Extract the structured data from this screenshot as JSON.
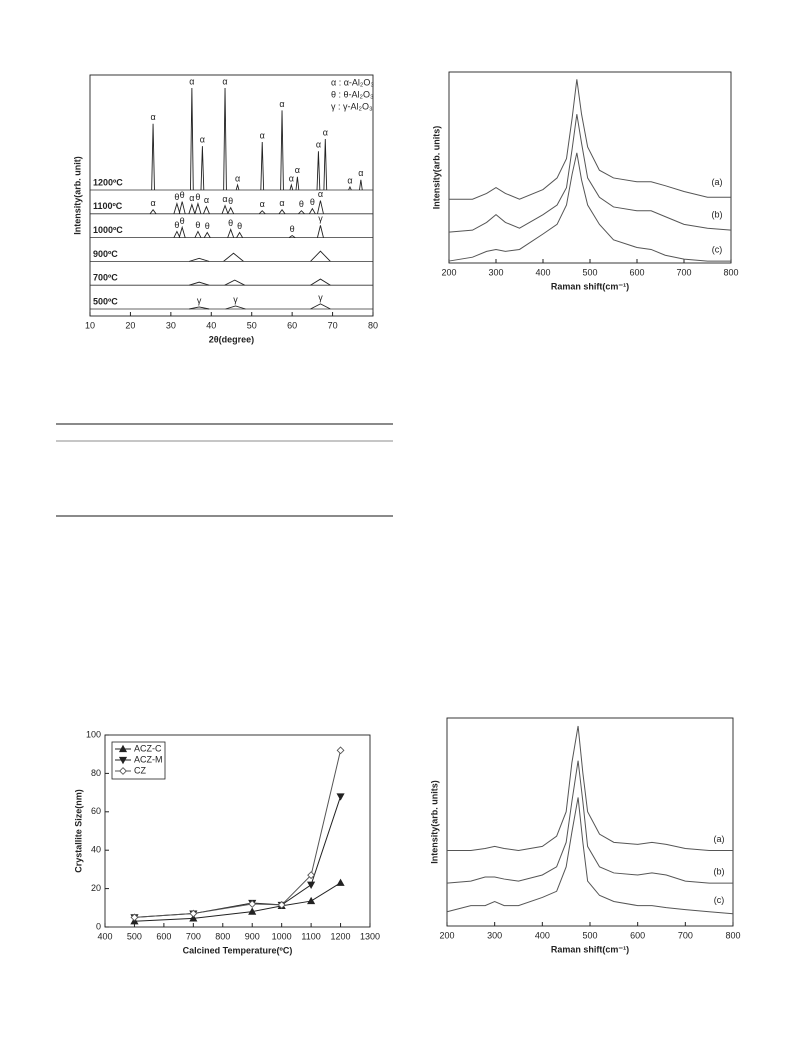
{
  "chart_data": [
    {
      "type": "xrd",
      "xlabel": "2θ(degree)",
      "ylabel": "Intensity(arb. unit)",
      "xlim": [
        10,
        80
      ],
      "xticks": [
        10,
        20,
        30,
        40,
        50,
        60,
        70,
        80
      ],
      "legend": [
        "α : α-Al₂O₃",
        "θ : θ-Al₂O₃",
        "γ : γ-Al₂O₃"
      ],
      "series": [
        {
          "name": "1200ºC",
          "x": [
            25.6,
            35.2,
            37.8,
            43.4,
            46.5,
            52.6,
            57.5,
            59.8,
            61.3,
            66.5,
            68.2,
            74.3,
            77.0
          ],
          "values": [
            65,
            100,
            43,
            100,
            5,
            47,
            78,
            5,
            13,
            38,
            50,
            3,
            10
          ],
          "peak_labels": [
            "α",
            "α",
            "α",
            "α",
            "α",
            "α",
            "α",
            "α",
            "α",
            "α",
            "α",
            "α",
            "α"
          ]
        },
        {
          "name": "1100ºC",
          "x": [
            25.6,
            31.5,
            32.8,
            35.2,
            36.7,
            38.8,
            43.4,
            44.8,
            52.6,
            57.5,
            62.3,
            65.0,
            67.0
          ],
          "values": [
            4,
            10,
            12,
            9,
            10,
            7,
            8,
            6,
            3,
            4,
            3,
            5,
            13
          ],
          "peak_labels": [
            "α",
            "θ",
            "θ",
            "α",
            "θ",
            "α",
            "α",
            "θ",
            "α",
            "α",
            "θ",
            "θ",
            "α"
          ]
        },
        {
          "name": "1000ºC",
          "x": [
            31.5,
            32.8,
            36.7,
            39.0,
            44.8,
            47.0,
            60.0,
            67.0
          ],
          "values": [
            6,
            10,
            6,
            5,
            8,
            5,
            2,
            12
          ],
          "peak_labels": [
            "θ",
            "θ",
            "θ",
            "θ",
            "θ",
            "θ",
            "θ",
            "γ"
          ]
        },
        {
          "name": "900ºC",
          "x": [
            37.0,
            45.5,
            67.0
          ],
          "values": [
            3,
            8,
            10
          ]
        },
        {
          "name": "700ºC",
          "x": [
            37.0,
            45.8,
            67.0
          ],
          "values": [
            3,
            5,
            6
          ]
        },
        {
          "name": "500ºC",
          "x": [
            37.0,
            46.0,
            67.0
          ],
          "values": [
            2,
            3,
            5
          ],
          "peak_labels": [
            "γ",
            "γ",
            "γ"
          ]
        }
      ]
    },
    {
      "type": "raman",
      "xlabel": "Raman shift(cm⁻¹)",
      "ylabel": "Intensity(arb. units)",
      "xlim": [
        200,
        800
      ],
      "xticks": [
        200,
        300,
        400,
        500,
        600,
        700,
        800
      ],
      "x": [
        200,
        250,
        280,
        300,
        320,
        350,
        400,
        430,
        450,
        462,
        472,
        482,
        495,
        520,
        550,
        600,
        630,
        660,
        700,
        750,
        800
      ],
      "series": [
        {
          "name": "(a)",
          "values": [
            33,
            33,
            36,
            39,
            36,
            33,
            38,
            44,
            54,
            75,
            95,
            77,
            60,
            48,
            44,
            42,
            42,
            40,
            37,
            34,
            34
          ]
        },
        {
          "name": "(b)",
          "values": [
            16,
            17,
            21,
            25,
            21,
            18,
            25,
            30,
            39,
            59,
            77,
            62,
            44,
            34,
            29,
            27,
            27,
            24,
            20,
            18,
            17
          ]
        },
        {
          "name": "(c)",
          "values": [
            1,
            3,
            6,
            7,
            6,
            7,
            15,
            20,
            30,
            46,
            57,
            43,
            30,
            20,
            12,
            8,
            7,
            4,
            2,
            1,
            1
          ]
        }
      ]
    },
    {
      "type": "line",
      "xlabel": "Calcined Temperature(ºC)",
      "ylabel": "Crystallite Size(nm)",
      "xlim": [
        400,
        1300
      ],
      "xticks": [
        400,
        500,
        600,
        700,
        800,
        900,
        1000,
        1100,
        1200,
        1300
      ],
      "ylim": [
        0,
        100
      ],
      "yticks": [
        0,
        20,
        40,
        60,
        80,
        100
      ],
      "x": [
        500,
        700,
        900,
        1000,
        1100,
        1200
      ],
      "series": [
        {
          "name": "ACZ-C",
          "marker": "triangle-up",
          "color": "#222222",
          "values": [
            3,
            4.5,
            8,
            11,
            13.5,
            23
          ]
        },
        {
          "name": "ACZ-M",
          "marker": "triangle-down",
          "color": "#222222",
          "values": [
            5,
            7,
            12.5,
            11.5,
            22,
            68
          ]
        },
        {
          "name": "CZ",
          "marker": "diamond-open",
          "color": "#555555",
          "values": [
            5,
            7,
            12,
            11.5,
            27,
            92
          ]
        }
      ]
    },
    {
      "type": "raman",
      "xlabel": "Raman shift(cm⁻¹)",
      "ylabel": "Intensity(arb. units)",
      "xlim": [
        200,
        800
      ],
      "xticks": [
        200,
        300,
        400,
        500,
        600,
        700,
        800
      ],
      "x": [
        200,
        250,
        280,
        300,
        320,
        350,
        400,
        430,
        450,
        462,
        475,
        485,
        495,
        520,
        550,
        600,
        630,
        660,
        700,
        750,
        800
      ],
      "series": [
        {
          "name": "(a)",
          "values": [
            37,
            37,
            38,
            39,
            38,
            37,
            39,
            44,
            56,
            80,
            98,
            75,
            56,
            45,
            41,
            40,
            41,
            40,
            38,
            37,
            37
          ]
        },
        {
          "name": "(b)",
          "values": [
            21,
            22,
            24,
            24,
            23,
            22,
            25,
            29,
            41,
            61,
            81,
            61,
            39,
            29,
            26,
            25,
            26,
            25,
            22,
            21,
            21
          ]
        },
        {
          "name": "(c)",
          "values": [
            7,
            10,
            10,
            12,
            10,
            10,
            14,
            17,
            29,
            46,
            63,
            41,
            22,
            15,
            12,
            10,
            10,
            9,
            8,
            7,
            6
          ]
        }
      ]
    }
  ]
}
